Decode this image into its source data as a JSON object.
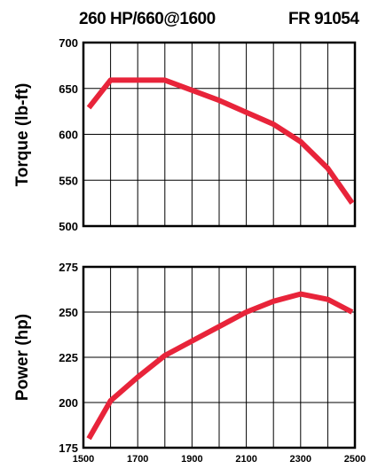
{
  "header": {
    "rating": "260 HP/660@1600",
    "model": "FR 91054"
  },
  "colors": {
    "curve": "#e8243a",
    "grid": "#000000",
    "frame": "#000000"
  },
  "chart_data": [
    {
      "type": "line",
      "ylabel": "Torque (lb-ft)",
      "xlabel": "",
      "xlim": [
        1500,
        2500
      ],
      "ylim": [
        500,
        700
      ],
      "x_ticks": [
        "1500",
        "1700",
        "1900",
        "2100",
        "2300",
        "2500"
      ],
      "y_ticks": [
        "700",
        "650",
        "600",
        "550",
        "500"
      ],
      "y_tick_values": [
        700,
        650,
        600,
        550,
        500
      ],
      "grid": true,
      "series": [
        {
          "x": [
            1520,
            1600,
            1700,
            1800,
            1900,
            2000,
            2100,
            2200,
            2300,
            2400,
            2490
          ],
          "y": [
            629,
            659,
            659,
            659,
            648,
            637,
            624,
            611,
            592,
            563,
            525
          ]
        }
      ]
    },
    {
      "type": "line",
      "ylabel": "Power (hp)",
      "xlabel": "",
      "xlim": [
        1500,
        2500
      ],
      "ylim": [
        175,
        275
      ],
      "x_ticks": [
        "1500",
        "1700",
        "1900",
        "2100",
        "2300",
        "2500"
      ],
      "y_ticks": [
        "275",
        "250",
        "225",
        "200",
        "175"
      ],
      "y_tick_values": [
        275,
        250,
        225,
        200,
        175
      ],
      "grid": true,
      "series": [
        {
          "x": [
            1520,
            1600,
            1700,
            1800,
            1900,
            2000,
            2100,
            2200,
            2300,
            2400,
            2490
          ],
          "y": [
            180,
            201,
            214,
            226,
            234,
            242,
            250,
            256,
            260,
            257,
            250
          ]
        }
      ]
    }
  ]
}
